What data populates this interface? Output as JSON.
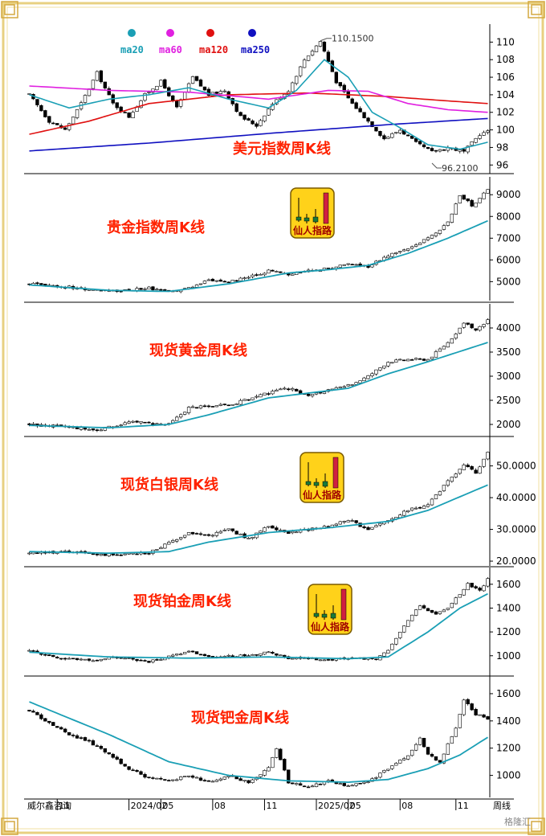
{
  "chart_data": [
    {
      "type": "candlestick",
      "title": "美元指数周K线",
      "y_ticks": [
        96,
        98,
        100,
        102,
        104,
        106,
        108,
        110
      ],
      "ylim": [
        95.2,
        111.5
      ],
      "legend": [
        {
          "name": "ma20",
          "color": "#1a9fb5"
        },
        {
          "name": "ma60",
          "color": "#e020e0"
        },
        {
          "name": "ma120",
          "color": "#e01010"
        },
        {
          "name": "ma250",
          "color": "#1010c0"
        }
      ],
      "annotations": {
        "high": "110.1500",
        "low": "96.2100"
      },
      "anchors": [
        [
          0,
          104
        ],
        [
          5,
          101
        ],
        [
          9,
          100
        ],
        [
          13,
          103
        ],
        [
          17,
          106.5
        ],
        [
          21,
          103
        ],
        [
          25,
          101.5
        ],
        [
          29,
          104
        ],
        [
          33,
          105.5
        ],
        [
          37,
          102.5
        ],
        [
          41,
          106
        ],
        [
          45,
          104
        ],
        [
          49,
          104.5
        ],
        [
          53,
          101.5
        ],
        [
          57,
          100.5
        ],
        [
          61,
          103
        ],
        [
          65,
          104.5
        ],
        [
          69,
          108
        ],
        [
          73,
          110.1
        ],
        [
          77,
          105.5
        ],
        [
          81,
          103
        ],
        [
          85,
          101
        ],
        [
          89,
          99
        ],
        [
          93,
          100
        ],
        [
          97,
          98.5
        ],
        [
          101,
          97.5
        ],
        [
          105,
          98
        ],
        [
          109,
          97.5
        ],
        [
          113,
          99.5
        ],
        [
          115,
          99.8
        ]
      ],
      "ma20_anchors": [
        [
          0,
          104
        ],
        [
          10,
          102.5
        ],
        [
          20,
          103.5
        ],
        [
          30,
          104
        ],
        [
          40,
          104.8
        ],
        [
          50,
          103.5
        ],
        [
          60,
          102.5
        ],
        [
          67,
          104.5
        ],
        [
          74,
          108
        ],
        [
          80,
          106
        ],
        [
          86,
          102
        ],
        [
          92,
          100.5
        ],
        [
          100,
          98.3
        ],
        [
          108,
          97.8
        ],
        [
          115,
          98.6
        ]
      ],
      "ma60_anchors": [
        [
          0,
          105
        ],
        [
          20,
          104.5
        ],
        [
          40,
          104.3
        ],
        [
          60,
          103.5
        ],
        [
          75,
          104.5
        ],
        [
          85,
          104.4
        ],
        [
          95,
          103
        ],
        [
          105,
          102.3
        ],
        [
          115,
          102
        ]
      ],
      "ma120_anchors": [
        [
          0,
          99.5
        ],
        [
          15,
          101
        ],
        [
          30,
          103
        ],
        [
          50,
          104
        ],
        [
          70,
          104.2
        ],
        [
          90,
          103.8
        ],
        [
          105,
          103.3
        ],
        [
          115,
          103
        ]
      ],
      "ma250_anchors": [
        [
          0,
          97.6
        ],
        [
          30,
          98.5
        ],
        [
          60,
          99.6
        ],
        [
          90,
          100.6
        ],
        [
          115,
          101.3
        ]
      ]
    },
    {
      "type": "candlestick",
      "title": "贵金指数周K线",
      "badge": "仙人指路",
      "y_ticks": [
        5000,
        6000,
        7000,
        8000,
        9000
      ],
      "ylim": [
        4200,
        9600
      ],
      "anchors": [
        [
          0,
          4900
        ],
        [
          10,
          4750
        ],
        [
          20,
          4550
        ],
        [
          30,
          4700
        ],
        [
          35,
          4500
        ],
        [
          40,
          4700
        ],
        [
          45,
          5100
        ],
        [
          50,
          5000
        ],
        [
          55,
          5200
        ],
        [
          60,
          5500
        ],
        [
          65,
          5350
        ],
        [
          70,
          5500
        ],
        [
          75,
          5600
        ],
        [
          80,
          5800
        ],
        [
          85,
          5700
        ],
        [
          90,
          6200
        ],
        [
          95,
          6500
        ],
        [
          100,
          7000
        ],
        [
          105,
          7700
        ],
        [
          108,
          9000
        ],
        [
          111,
          8500
        ],
        [
          115,
          9200
        ]
      ],
      "ma_anchors": [
        [
          0,
          4850
        ],
        [
          20,
          4600
        ],
        [
          35,
          4550
        ],
        [
          50,
          4900
        ],
        [
          65,
          5400
        ],
        [
          75,
          5550
        ],
        [
          85,
          5750
        ],
        [
          95,
          6300
        ],
        [
          105,
          7000
        ],
        [
          115,
          7800
        ]
      ]
    },
    {
      "type": "candlestick",
      "title": "现货黄金周K线",
      "y_ticks": [
        2000,
        2500,
        3000,
        3500,
        4000
      ],
      "ylim": [
        1800,
        4400
      ],
      "anchors": [
        [
          0,
          2000
        ],
        [
          10,
          1950
        ],
        [
          17,
          1880
        ],
        [
          25,
          2050
        ],
        [
          35,
          2000
        ],
        [
          40,
          2350
        ],
        [
          50,
          2400
        ],
        [
          60,
          2650
        ],
        [
          65,
          2750
        ],
        [
          70,
          2600
        ],
        [
          80,
          2800
        ],
        [
          85,
          3000
        ],
        [
          90,
          3300
        ],
        [
          95,
          3350
        ],
        [
          100,
          3350
        ],
        [
          105,
          3700
        ],
        [
          109,
          4100
        ],
        [
          112,
          3950
        ],
        [
          115,
          4150
        ]
      ],
      "ma_anchors": [
        [
          0,
          1980
        ],
        [
          20,
          1930
        ],
        [
          35,
          2000
        ],
        [
          45,
          2200
        ],
        [
          60,
          2550
        ],
        [
          70,
          2650
        ],
        [
          80,
          2750
        ],
        [
          90,
          3050
        ],
        [
          100,
          3300
        ],
        [
          115,
          3700
        ]
      ]
    },
    {
      "type": "candlestick",
      "title": "现货白银周K线",
      "badge": "仙人指路",
      "y_ticks_labels": [
        "20.0000",
        "30.0000",
        "40.0000",
        "50.0000"
      ],
      "y_ticks": [
        20,
        30,
        40,
        50
      ],
      "ylim": [
        19,
        58
      ],
      "anchors": [
        [
          0,
          22.5
        ],
        [
          10,
          23
        ],
        [
          18,
          22
        ],
        [
          30,
          22.5
        ],
        [
          40,
          29
        ],
        [
          45,
          28
        ],
        [
          50,
          30
        ],
        [
          55,
          27
        ],
        [
          60,
          31
        ],
        [
          65,
          29
        ],
        [
          70,
          30
        ],
        [
          75,
          31
        ],
        [
          80,
          33
        ],
        [
          85,
          30
        ],
        [
          90,
          33
        ],
        [
          95,
          36
        ],
        [
          100,
          38
        ],
        [
          105,
          45
        ],
        [
          109,
          50
        ],
        [
          112,
          48
        ],
        [
          115,
          54
        ]
      ],
      "ma_anchors": [
        [
          0,
          23
        ],
        [
          20,
          22.5
        ],
        [
          35,
          23
        ],
        [
          45,
          26
        ],
        [
          60,
          29
        ],
        [
          75,
          30.5
        ],
        [
          90,
          32.5
        ],
        [
          100,
          36
        ],
        [
          115,
          44
        ]
      ]
    },
    {
      "type": "candlestick",
      "title": "现货铂金周K线",
      "badge": "仙人指路",
      "y_ticks": [
        1000,
        1200,
        1400,
        1600
      ],
      "ylim": [
        850,
        1700
      ],
      "anchors": [
        [
          0,
          1040
        ],
        [
          8,
          980
        ],
        [
          15,
          960
        ],
        [
          22,
          990
        ],
        [
          30,
          950
        ],
        [
          40,
          1040
        ],
        [
          45,
          990
        ],
        [
          55,
          1000
        ],
        [
          60,
          1030
        ],
        [
          65,
          980
        ],
        [
          75,
          970
        ],
        [
          82,
          980
        ],
        [
          87,
          970
        ],
        [
          90,
          1050
        ],
        [
          95,
          1300
        ],
        [
          98,
          1420
        ],
        [
          102,
          1350
        ],
        [
          105,
          1400
        ],
        [
          110,
          1600
        ],
        [
          113,
          1550
        ],
        [
          115,
          1640
        ]
      ],
      "ma_anchors": [
        [
          0,
          1030
        ],
        [
          20,
          990
        ],
        [
          40,
          980
        ],
        [
          60,
          990
        ],
        [
          80,
          975
        ],
        [
          90,
          990
        ],
        [
          100,
          1200
        ],
        [
          108,
          1400
        ],
        [
          115,
          1520
        ]
      ]
    },
    {
      "type": "candlestick",
      "title": "现货钯金周K线",
      "y_ticks": [
        1000,
        1200,
        1400,
        1600
      ],
      "ylim": [
        850,
        1700
      ],
      "anchors": [
        [
          0,
          1480
        ],
        [
          5,
          1380
        ],
        [
          10,
          1300
        ],
        [
          15,
          1250
        ],
        [
          20,
          1150
        ],
        [
          25,
          1050
        ],
        [
          30,
          980
        ],
        [
          35,
          960
        ],
        [
          40,
          1000
        ],
        [
          45,
          950
        ],
        [
          50,
          1000
        ],
        [
          55,
          950
        ],
        [
          60,
          1050
        ],
        [
          62,
          1200
        ],
        [
          65,
          950
        ],
        [
          70,
          920
        ],
        [
          75,
          960
        ],
        [
          80,
          920
        ],
        [
          85,
          950
        ],
        [
          90,
          1050
        ],
        [
          95,
          1150
        ],
        [
          98,
          1270
        ],
        [
          100,
          1150
        ],
        [
          103,
          1100
        ],
        [
          107,
          1350
        ],
        [
          109,
          1550
        ],
        [
          112,
          1450
        ],
        [
          115,
          1420
        ]
      ],
      "ma_anchors": [
        [
          0,
          1540
        ],
        [
          20,
          1300
        ],
        [
          35,
          1100
        ],
        [
          50,
          1000
        ],
        [
          65,
          960
        ],
        [
          80,
          950
        ],
        [
          90,
          970
        ],
        [
          100,
          1050
        ],
        [
          108,
          1150
        ],
        [
          115,
          1280
        ]
      ]
    }
  ],
  "x_axis": {
    "tick_labels": [
      "11",
      "2024/02",
      "05",
      "08",
      "11",
      "2025/02",
      "05",
      "08",
      "11"
    ],
    "tick_index": [
      7,
      25,
      33,
      46,
      59,
      72,
      80,
      93,
      107
    ],
    "bars": 116,
    "left_label": "威尔鑫咨询",
    "right_label": "周线"
  },
  "colors": {
    "up": "#ffffff",
    "down": "#000000",
    "ma": "#1a9fb5",
    "title": "#ff2200",
    "frame": "#e8d080"
  },
  "watermark": "格隆汇"
}
